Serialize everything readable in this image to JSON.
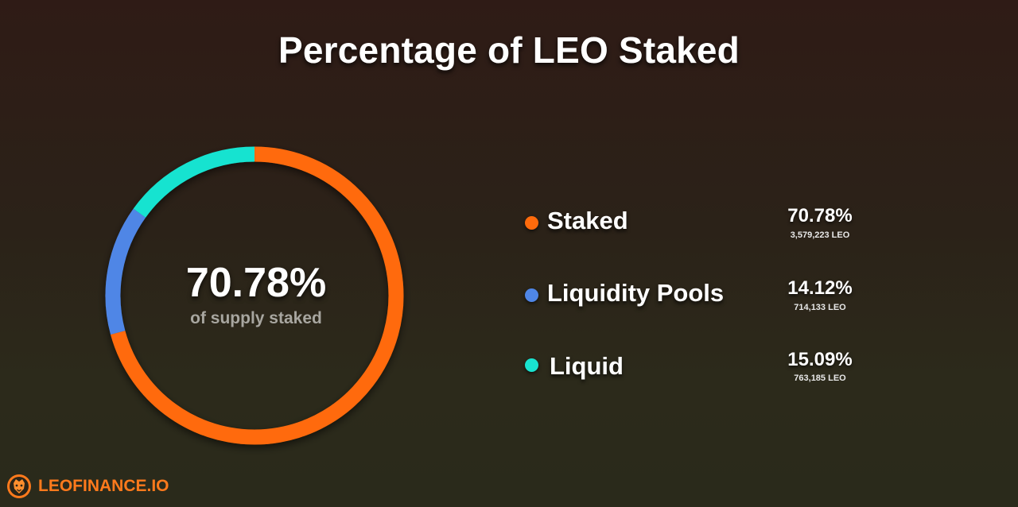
{
  "title": "Percentage of LEO Staked",
  "center": {
    "value": "70.78%",
    "caption": "of supply staked"
  },
  "chart_data": {
    "type": "pie",
    "title": "Percentage of LEO Staked",
    "categories": [
      "Staked",
      "Liquidity Pools",
      "Liquid"
    ],
    "values": [
      70.78,
      14.12,
      15.09
    ],
    "amounts": [
      3579223,
      714133,
      763185
    ],
    "colors": [
      "#ff6b0c",
      "#4f86e6",
      "#19e3d0"
    ],
    "labels": [
      {
        "name": "Staked",
        "percent": "70.78%",
        "amount": "3,579,223 LEO"
      },
      {
        "name": "Liquidity Pools",
        "percent": "14.12%",
        "amount": "714,133 LEO"
      },
      {
        "name": "Liquid",
        "percent": "15.09%",
        "amount": "763,185 LEO"
      }
    ],
    "legend_position": "right"
  },
  "brand": {
    "text": "LEOFINANCE.IO",
    "text_color": "#ff7a1c"
  }
}
